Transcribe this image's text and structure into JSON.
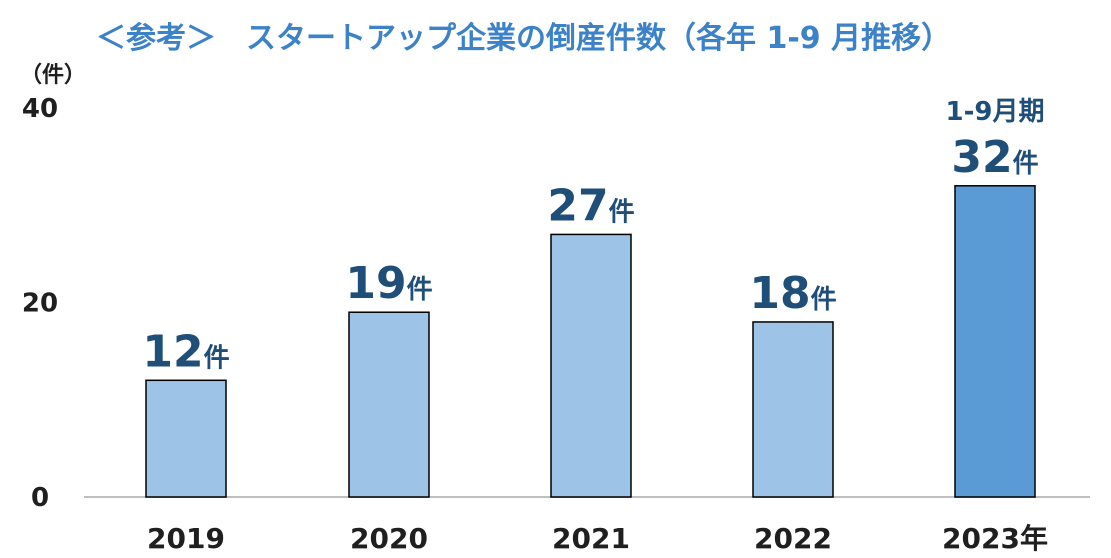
{
  "chart_data": {
    "type": "bar",
    "title": "＜参考＞　スタートアップ企業の倒産件数（各年 1-9 月推移）",
    "ylabel": "（件）",
    "ylim": [
      0,
      40
    ],
    "yticks": [
      "0",
      "20",
      "40"
    ],
    "categories": [
      "2019",
      "2020",
      "2021",
      "2022",
      "2023年"
    ],
    "values": [
      12,
      19,
      27,
      18,
      32
    ],
    "data_labels": [
      {
        "number": "12",
        "unit": "件"
      },
      {
        "number": "19",
        "unit": "件"
      },
      {
        "number": "27",
        "unit": "件"
      },
      {
        "number": "18",
        "unit": "件"
      },
      {
        "number": "32",
        "unit": "件",
        "period": "1-9月期"
      }
    ],
    "colors": {
      "bar": "#9dc3e6",
      "highlight_bar": "#5b9bd5",
      "bar_border": "#000000",
      "label": "#1f4e79",
      "title": "#3c82c8",
      "axis": "#bfbfbf"
    },
    "highlight_index": 4,
    "grid": false,
    "legend": "none"
  }
}
